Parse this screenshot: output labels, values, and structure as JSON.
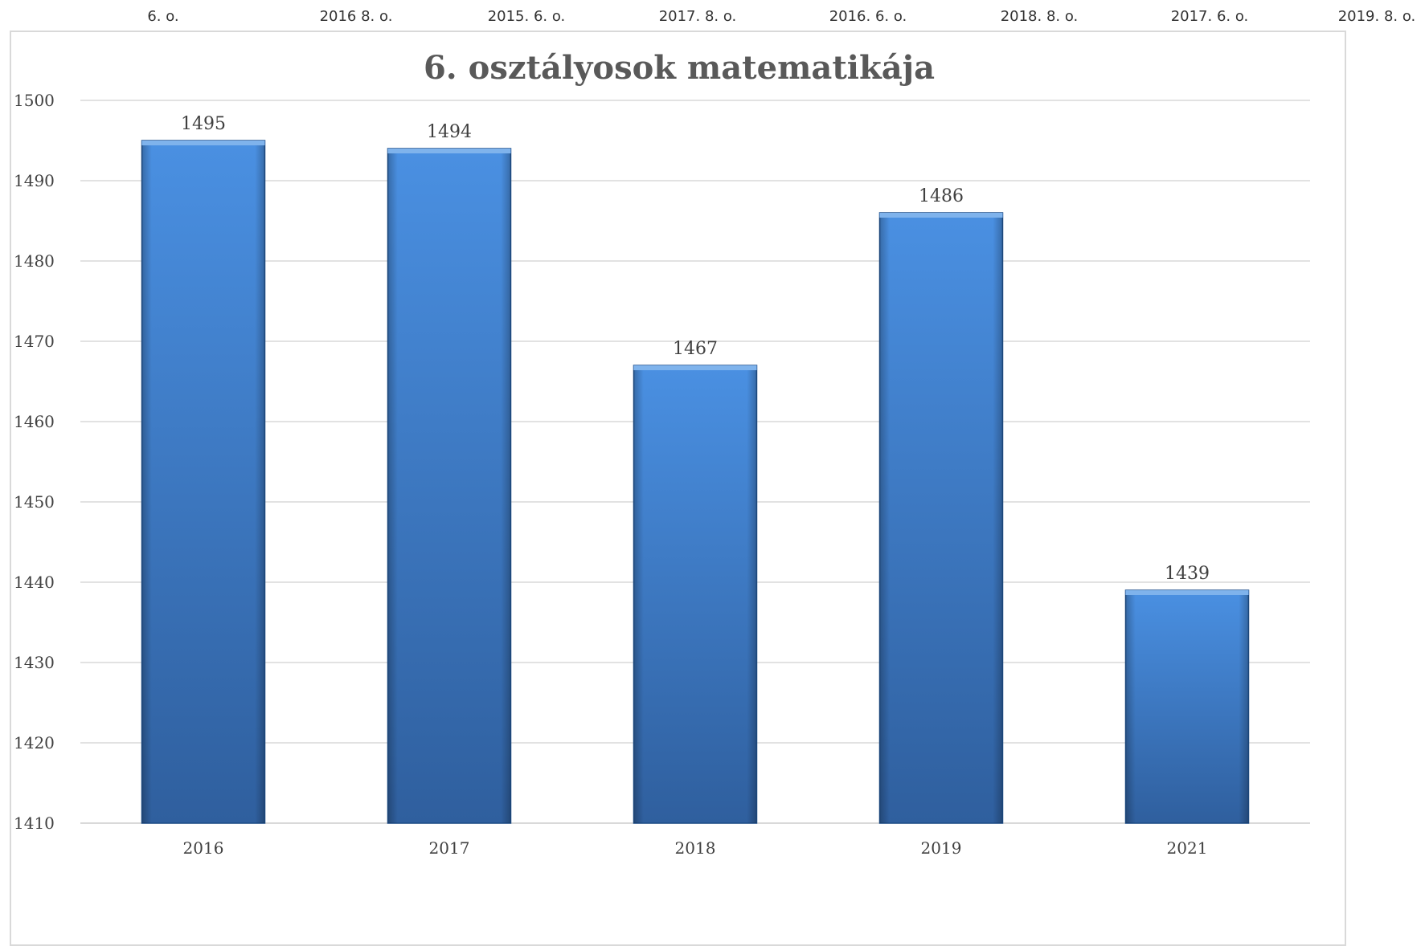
{
  "top_strip_labels": [
    "6. o.",
    "2016 8. o.",
    "2015. 6. o.",
    "2017. 8. o.",
    "2016. 6. o.",
    "2018. 8. o.",
    "2017. 6. o.",
    "2019. 8. o."
  ],
  "chart_data": {
    "type": "bar",
    "title": "6. osztályosok matematikája",
    "xlabel": "",
    "ylabel": "",
    "categories": [
      "2016",
      "2017",
      "2018",
      "2019",
      "2021"
    ],
    "values": [
      1495,
      1494,
      1467,
      1486,
      1439
    ],
    "ylim": [
      1410,
      1500
    ],
    "yticks": [
      1410,
      1420,
      1430,
      1440,
      1450,
      1460,
      1470,
      1480,
      1490,
      1500
    ],
    "grid": true,
    "legend": "none",
    "data_labels": true,
    "colors": {
      "bar_top": "#4a90e2",
      "bar_bottom": "#2f5f9e",
      "bar_edge": "#1f4f8a",
      "grid": "#d9d9d9"
    }
  }
}
